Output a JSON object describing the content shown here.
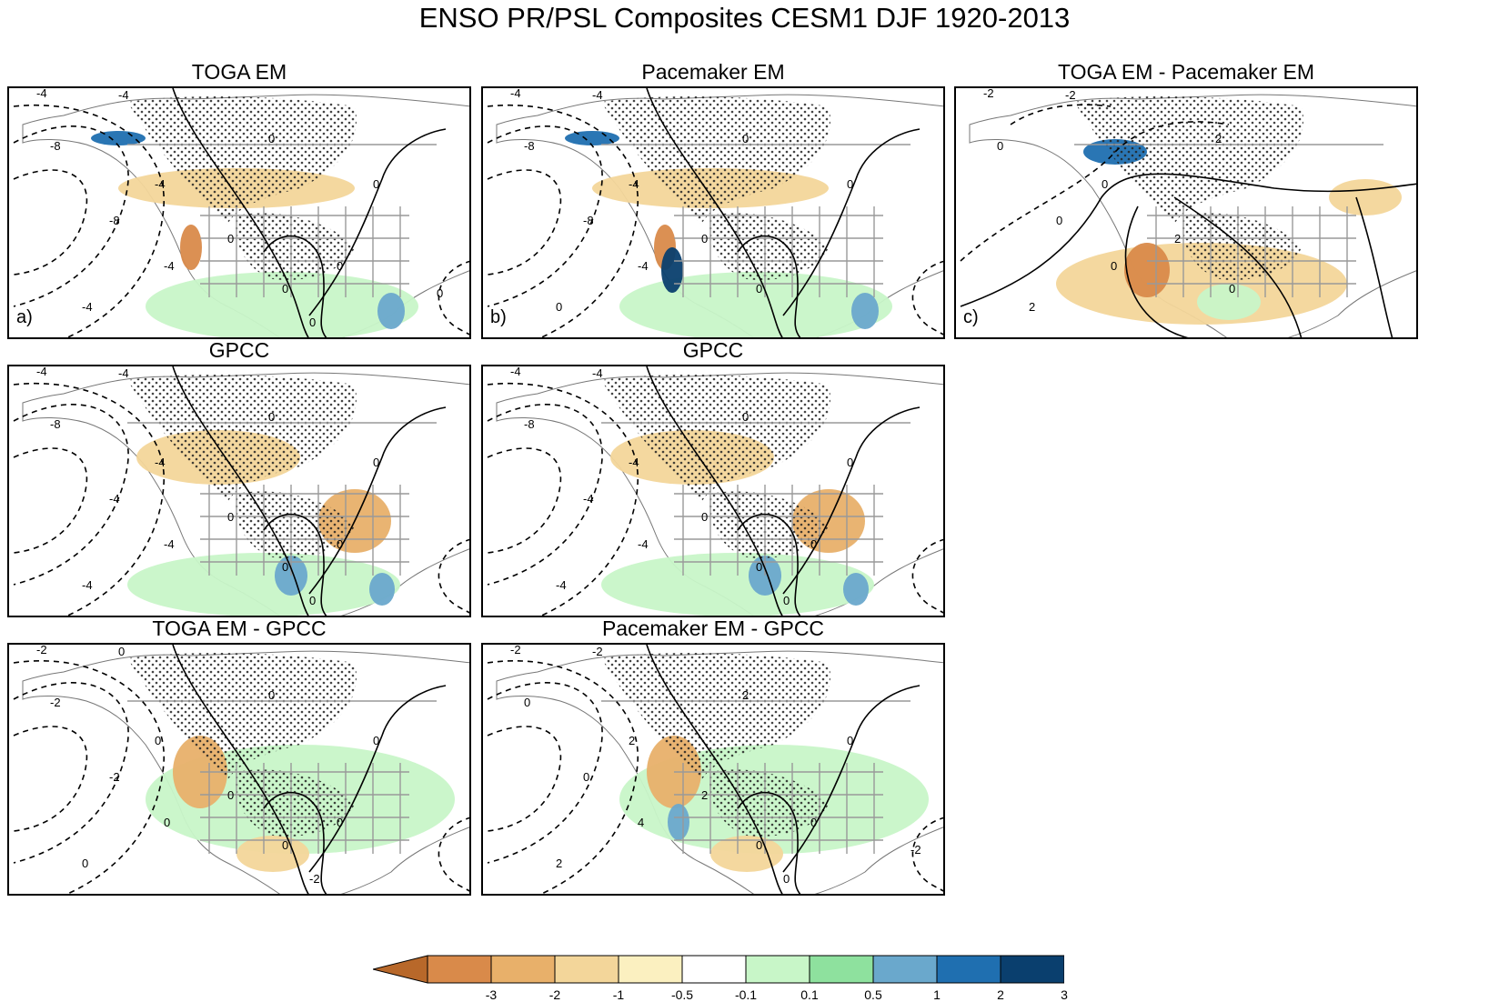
{
  "title": "ENSO PR/PSL Composites CESM1 DJF 1920-2013",
  "chart_data": [
    {
      "id": "a",
      "type": "heatmap",
      "title": "TOGA EM",
      "panel_label": "a)",
      "contour_labels": [
        "-4",
        "-4",
        "-8",
        "-8",
        "-4",
        "-4",
        "-4",
        "0",
        "0",
        "0",
        "0",
        "0",
        "0",
        "0"
      ]
    },
    {
      "id": "b",
      "type": "heatmap",
      "title": "Pacemaker EM",
      "panel_label": "b)",
      "contour_labels": [
        "-4",
        "-4",
        "-8",
        "-8",
        "-4",
        "-4",
        "0",
        "0",
        "0",
        "0",
        "0"
      ]
    },
    {
      "id": "c",
      "type": "heatmap",
      "title": "TOGA EM - Pacemaker EM",
      "panel_label": "c)",
      "contour_labels": [
        "-2",
        "-2",
        "0",
        "0",
        "0",
        "0",
        "2",
        "2",
        "2",
        "0"
      ]
    },
    {
      "id": "d",
      "type": "heatmap",
      "title": "GPCC",
      "panel_label": "",
      "contour_labels": [
        "-4",
        "-4",
        "-8",
        "-4",
        "-4",
        "-4",
        "-4",
        "0",
        "0",
        "0",
        "0",
        "0",
        "0"
      ]
    },
    {
      "id": "e",
      "type": "heatmap",
      "title": "GPCC",
      "panel_label": "",
      "contour_labels": [
        "-4",
        "-4",
        "-8",
        "-4",
        "-4",
        "-4",
        "-4",
        "0",
        "0",
        "0",
        "0",
        "0",
        "0"
      ]
    },
    {
      "id": "f",
      "type": "heatmap",
      "title": "TOGA EM - GPCC",
      "panel_label": "",
      "contour_labels": [
        "-2",
        "0",
        "-2",
        "-2",
        "0",
        "0",
        "0",
        "0",
        "0",
        "0",
        "0",
        "0",
        "-2"
      ]
    },
    {
      "id": "g",
      "type": "heatmap",
      "title": "Pacemaker EM - GPCC",
      "panel_label": "",
      "contour_labels": [
        "-2",
        "-2",
        "0",
        "0",
        "2",
        "4",
        "2",
        "2",
        "2",
        "0",
        "0",
        "0",
        "0",
        "-2"
      ]
    }
  ],
  "colorbar": {
    "ticks": [
      "-3",
      "-2",
      "-1",
      "-0.5",
      "-0.1",
      "0.1",
      "0.5",
      "1",
      "2",
      "3"
    ],
    "colors": [
      "#b8682a",
      "#d98a4a",
      "#e8b06a",
      "#f3d69a",
      "#fbf0c0",
      "#ffffff",
      "#c8f6c8",
      "#8ee19e",
      "#6aa8cc",
      "#1f6fb0",
      "#0a3f6e",
      "#062a4a"
    ]
  }
}
